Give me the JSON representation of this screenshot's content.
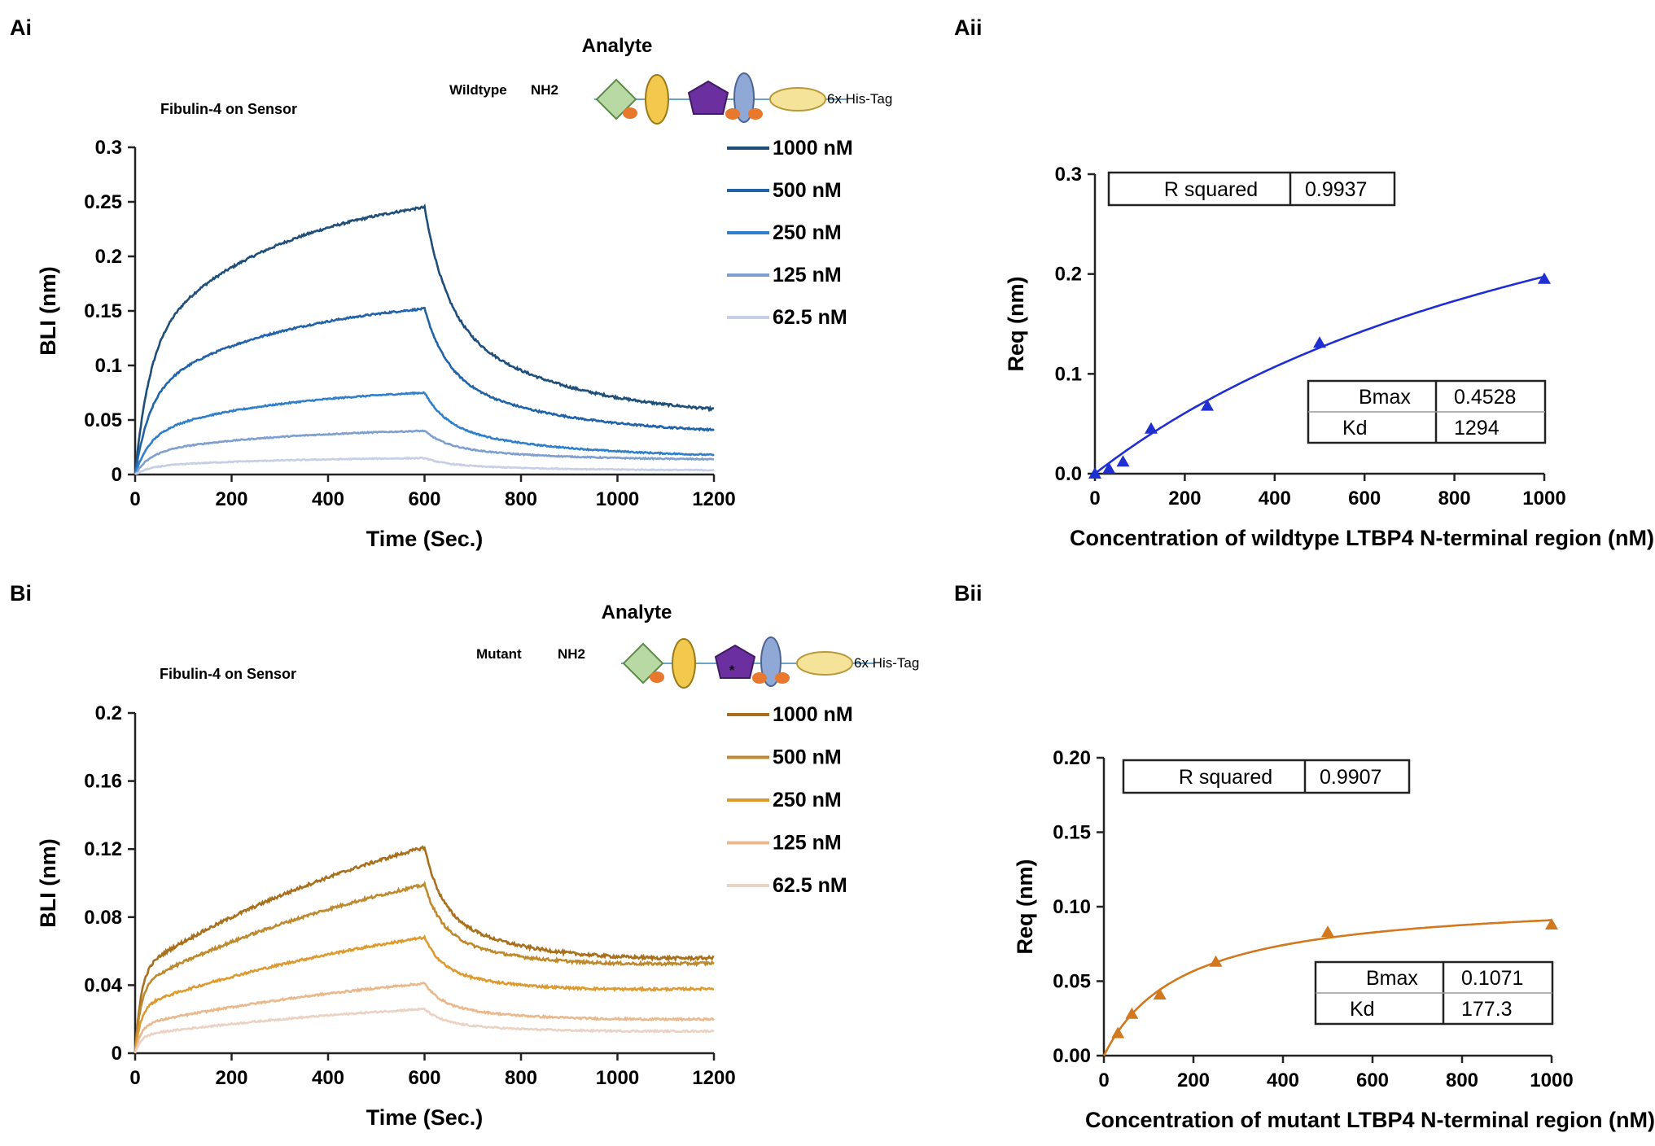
{
  "colors": {
    "wt_series": [
      "#1f4e79",
      "#2163a8",
      "#2f7fcb",
      "#7f9fcf",
      "#c6cfe6"
    ],
    "mut_series": [
      "#a8701c",
      "#bf8a2e",
      "#dd9a2f",
      "#e9b98e",
      "#ead3c4"
    ],
    "wt_fit": "#1f2fd1",
    "mut_fit": "#d2781e"
  },
  "chart_data": [
    {
      "id": "Ai",
      "panel_label": "Ai",
      "type": "line",
      "sensor_label": "Fibulin-4 on Sensor",
      "analyte_title": "Analyte",
      "construct_name": "Wildtype",
      "construct_terminus": "NH2",
      "construct_tag": "6x His-Tag",
      "xlabel": "Time (Sec.)",
      "ylabel": "BLI (nm)",
      "xlim": [
        0,
        1200
      ],
      "ylim": [
        0,
        0.3
      ],
      "xticks": [
        "0",
        "200",
        "400",
        "600",
        "800",
        "1000",
        "1200"
      ],
      "yticks": [
        "0",
        "0.05",
        "0.1",
        "0.15",
        "0.2",
        "0.25",
        "0.3"
      ],
      "dissociation_start": 600,
      "series": [
        {
          "name": "1000 nM",
          "peak": 0.245,
          "end": 0.06
        },
        {
          "name": "500 nM",
          "peak": 0.152,
          "end": 0.041
        },
        {
          "name": "250 nM",
          "peak": 0.075,
          "end": 0.018
        },
        {
          "name": "125 nM",
          "peak": 0.04,
          "end": 0.014
        },
        {
          "name": "62.5 nM",
          "peak": 0.015,
          "end": 0.004
        }
      ]
    },
    {
      "id": "Aii",
      "panel_label": "Aii",
      "type": "scatter",
      "xlabel": "Concentration of wildtype LTBP4 N-terminal region (nM)",
      "ylabel": "Req (nm)",
      "xlim": [
        0,
        1000
      ],
      "ylim": [
        0,
        0.3
      ],
      "xticks": [
        "0",
        "200",
        "400",
        "600",
        "800",
        "1000"
      ],
      "yticks": [
        "0.0",
        "0.1",
        "0.2",
        "0.3"
      ],
      "points": {
        "x": [
          0,
          31.25,
          62.5,
          125,
          250,
          500,
          1000
        ],
        "y": [
          0.0,
          0.005,
          0.012,
          0.045,
          0.068,
          0.131,
          0.195
        ]
      },
      "fit": {
        "model": "one-site binding",
        "Bmax": 0.4528,
        "Kd": 1294
      },
      "r_squared_table": {
        "label": "R squared",
        "value": "0.9937"
      },
      "params_table": [
        {
          "label": "Bmax",
          "value": "0.4528"
        },
        {
          "label": "Kd",
          "value": "1294"
        }
      ]
    },
    {
      "id": "Bi",
      "panel_label": "Bi",
      "type": "line",
      "sensor_label": "Fibulin-4 on Sensor",
      "analyte_title": "Analyte",
      "construct_name": "Mutant",
      "construct_terminus": "NH2",
      "construct_tag": "6x His-Tag",
      "construct_mutation_mark": "*",
      "xlabel": "Time (Sec.)",
      "ylabel": "BLI (nm)",
      "xlim": [
        0,
        1200
      ],
      "ylim": [
        0,
        0.2
      ],
      "xticks": [
        "0",
        "200",
        "400",
        "600",
        "800",
        "1000",
        "1200"
      ],
      "yticks": [
        "0",
        "0.04",
        "0.08",
        "0.12",
        "0.16",
        "0.2"
      ],
      "dissociation_start": 600,
      "series": [
        {
          "name": "1000 nM",
          "peak": 0.121,
          "end": 0.056
        },
        {
          "name": "500 nM",
          "peak": 0.099,
          "end": 0.053
        },
        {
          "name": "250 nM",
          "peak": 0.068,
          "end": 0.038
        },
        {
          "name": "125 nM",
          "peak": 0.041,
          "end": 0.02
        },
        {
          "name": "62.5 nM",
          "peak": 0.026,
          "end": 0.013
        }
      ]
    },
    {
      "id": "Bii",
      "panel_label": "Bii",
      "type": "scatter",
      "xlabel": "Concentration of mutant LTBP4 N-terminal region (nM)",
      "ylabel": "Req (nm)",
      "xlim": [
        0,
        1000
      ],
      "ylim": [
        0,
        0.2
      ],
      "xticks": [
        "0",
        "200",
        "400",
        "600",
        "800",
        "1000"
      ],
      "yticks": [
        "0.00",
        "0.05",
        "0.10",
        "0.15",
        "0.20"
      ],
      "points": {
        "x": [
          31.25,
          62.5,
          125,
          250,
          500,
          1000
        ],
        "y": [
          0.015,
          0.028,
          0.041,
          0.063,
          0.083,
          0.088
        ]
      },
      "fit": {
        "model": "one-site binding",
        "Bmax": 0.1071,
        "Kd": 177.3
      },
      "r_squared_table": {
        "label": "R squared",
        "value": "0.9907"
      },
      "params_table": [
        {
          "label": "Bmax",
          "value": "0.1071"
        },
        {
          "label": "Kd",
          "value": "177.3"
        }
      ]
    }
  ]
}
